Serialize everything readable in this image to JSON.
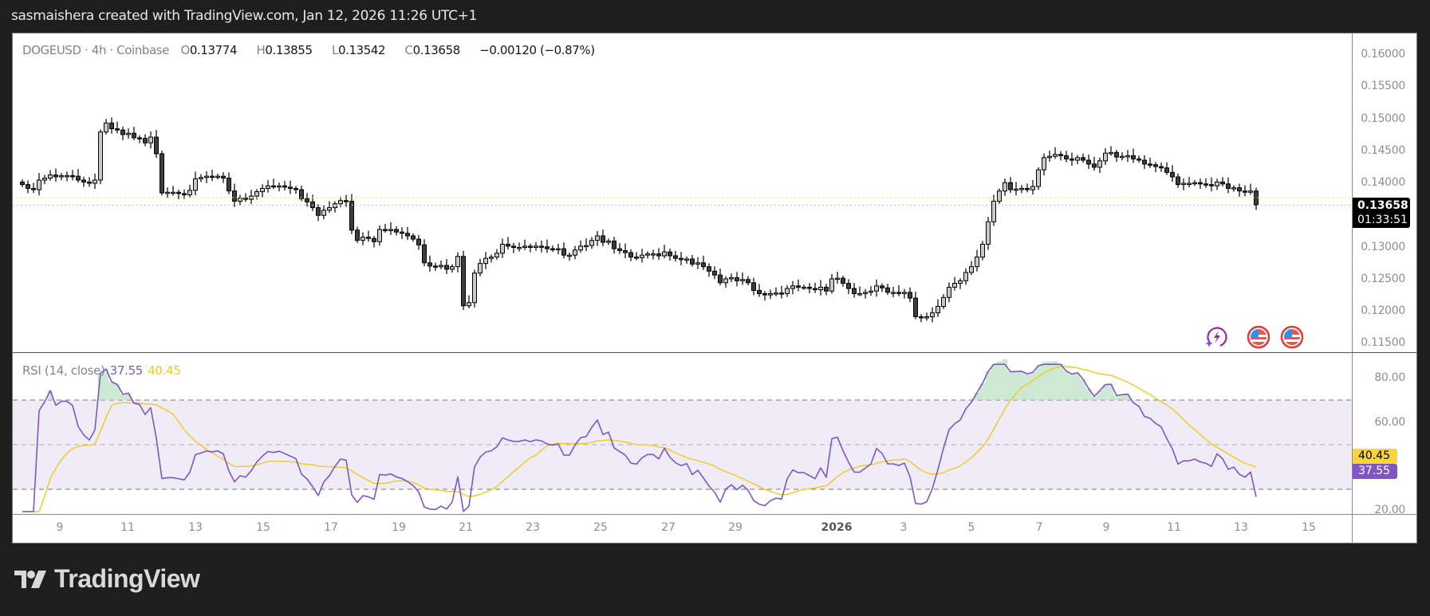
{
  "caption": "sasmaishera created with TradingView.com, Jan 12, 2026 11:26 UTC+1",
  "legend": {
    "symbol": "DOGEUSD · 4h · Coinbase",
    "open_key": "O",
    "open": "0.13774",
    "high_key": "H",
    "high": "0.13855",
    "low_key": "L",
    "low": "0.13542",
    "close_key": "C",
    "close": "0.13658",
    "change": "−0.00120 (−0.87%)"
  },
  "price_axis": {
    "labels": [
      "0.16000",
      "0.15500",
      "0.15000",
      "0.14500",
      "0.14000",
      "0.13000",
      "0.12500",
      "0.12000",
      "0.11500"
    ],
    "current_price": "0.13658",
    "countdown": "01:33:51"
  },
  "rsi": {
    "title": "RSI (14, close)",
    "value": "37.55",
    "ma_value": "40.45",
    "axis_labels": [
      "80.00",
      "60.00",
      "20.00"
    ],
    "upper_band": 70,
    "middle_band": 50,
    "lower_band": 30
  },
  "time_axis": {
    "labels": [
      "9",
      "11",
      "13",
      "15",
      "17",
      "19",
      "21",
      "23",
      "25",
      "27",
      "29",
      "2026",
      "3",
      "5",
      "7",
      "9",
      "11",
      "13",
      "15"
    ]
  },
  "icons": [
    "lightning-sparkle-icon",
    "us-flag-event-icon",
    "us-flag-event-icon"
  ],
  "logo": {
    "text": "TradingView"
  },
  "colors": {
    "up_candle": "#c7c8cc",
    "down_candle": "#3d3d3d",
    "wick": "#000000",
    "rsi_line": "#7e57c2",
    "rsi_ma": "#f5c917",
    "rsi_band_fill": "#efecf8",
    "overbought_fill": "#b9dfc0",
    "last_price_line": "#f5e14a"
  },
  "chart_data": {
    "type": "candlestick",
    "title": "DOGEUSD · 4h · Coinbase",
    "price_range": [
      0.1135,
      0.1625
    ],
    "rsi_range": [
      17,
      88
    ],
    "candles_close": [
      0.1398,
      0.1392,
      0.139,
      0.1405,
      0.1408,
      0.1413,
      0.141,
      0.1412,
      0.1412,
      0.1411,
      0.1405,
      0.1402,
      0.14,
      0.1405,
      0.148,
      0.1494,
      0.1485,
      0.1483,
      0.1476,
      0.1478,
      0.1471,
      0.147,
      0.1463,
      0.1472,
      0.1446,
      0.1385,
      0.1386,
      0.1386,
      0.1384,
      0.1382,
      0.1389,
      0.1407,
      0.1409,
      0.1411,
      0.141,
      0.1411,
      0.1408,
      0.1388,
      0.1372,
      0.1377,
      0.1375,
      0.138,
      0.1387,
      0.1392,
      0.1396,
      0.1395,
      0.1396,
      0.1394,
      0.1392,
      0.139,
      0.1376,
      0.1371,
      0.1362,
      0.135,
      0.1358,
      0.1362,
      0.1368,
      0.1373,
      0.1372,
      0.1327,
      0.1311,
      0.1316,
      0.1314,
      0.1309,
      0.1328,
      0.1327,
      0.1328,
      0.1324,
      0.1322,
      0.1318,
      0.1313,
      0.1304,
      0.1276,
      0.1271,
      0.127,
      0.1272,
      0.1266,
      0.127,
      0.1286,
      0.1209,
      0.1214,
      0.126,
      0.1275,
      0.1283,
      0.1285,
      0.1291,
      0.1305,
      0.1302,
      0.13,
      0.13,
      0.1302,
      0.13,
      0.1302,
      0.1301,
      0.1298,
      0.1297,
      0.1298,
      0.1288,
      0.1288,
      0.1296,
      0.1302,
      0.1303,
      0.1311,
      0.1318,
      0.1308,
      0.131,
      0.1298,
      0.1295,
      0.1292,
      0.1285,
      0.1284,
      0.1288,
      0.129,
      0.129,
      0.1287,
      0.1293,
      0.1287,
      0.1283,
      0.1281,
      0.1282,
      0.1274,
      0.1276,
      0.127,
      0.1263,
      0.1257,
      0.1245,
      0.1251,
      0.1253,
      0.1248,
      0.125,
      0.1245,
      0.1233,
      0.1228,
      0.1226,
      0.1228,
      0.1229,
      0.1228,
      0.1236,
      0.124,
      0.1238,
      0.1238,
      0.1236,
      0.1234,
      0.1238,
      0.1232,
      0.1251,
      0.1252,
      0.1244,
      0.1236,
      0.1228,
      0.1228,
      0.123,
      0.1232,
      0.124,
      0.1237,
      0.123,
      0.123,
      0.1229,
      0.123,
      0.1221,
      0.1192,
      0.1191,
      0.1192,
      0.1198,
      0.1208,
      0.1222,
      0.1238,
      0.1244,
      0.1248,
      0.1261,
      0.127,
      0.1285,
      0.1305,
      0.134,
      0.1372,
      0.1388,
      0.1401,
      0.139,
      0.1391,
      0.1392,
      0.139,
      0.1395,
      0.1421,
      0.144,
      0.1442,
      0.1445,
      0.1443,
      0.1438,
      0.1436,
      0.144,
      0.1436,
      0.143,
      0.1425,
      0.1435,
      0.1447,
      0.1448,
      0.1441,
      0.1442,
      0.1443,
      0.1438,
      0.1436,
      0.143,
      0.1429,
      0.1426,
      0.1424,
      0.1417,
      0.141,
      0.1398,
      0.14,
      0.14,
      0.1401,
      0.1399,
      0.1398,
      0.1396,
      0.1402,
      0.1399,
      0.1392,
      0.1393,
      0.1388,
      0.1386,
      0.1388,
      0.1366
    ]
  }
}
